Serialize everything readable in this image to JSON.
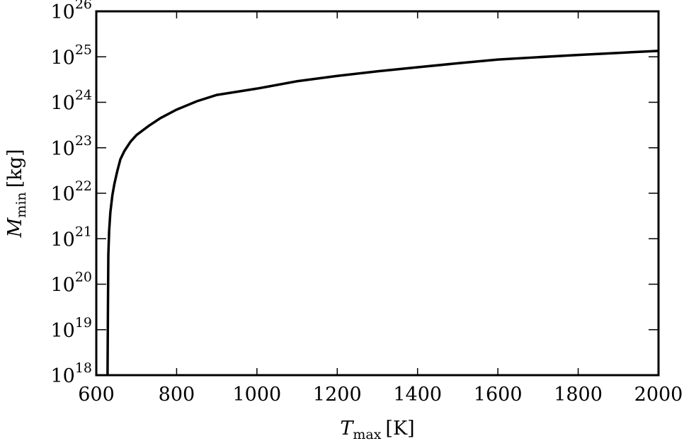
{
  "chart_data": {
    "type": "line",
    "xlabel": {
      "symbol": "T",
      "subscript": "max",
      "unit": "[K]"
    },
    "ylabel": {
      "symbol": "M",
      "subscript": "min",
      "unit": "[kg]"
    },
    "x": [
      628,
      629,
      630,
      632,
      635,
      640,
      645,
      652,
      660,
      670,
      685,
      700,
      730,
      760,
      800,
      850,
      900,
      1000,
      1100,
      1200,
      1300,
      1400,
      1500,
      1600,
      1700,
      1800,
      1900,
      2000
    ],
    "values": [
      1e+18,
      3e+19,
      4.5e+20,
      1.5e+21,
      3.8e+21,
      9e+21,
      1.6e+22,
      3e+22,
      5.6e+22,
      8.5e+22,
      1.35e+23,
      1.9e+23,
      3e+23,
      4.5e+23,
      6.9e+23,
      1.05e+24,
      1.45e+24,
      2e+24,
      2.9e+24,
      3.8e+24,
      4.8e+24,
      5.9e+24,
      7.2e+24,
      8.7e+24,
      9.8e+24,
      1.1e+25,
      1.22e+25,
      1.35e+25
    ],
    "color": "#000000",
    "log_y": true,
    "xlim": [
      600,
      2000
    ],
    "xticks": [
      600,
      800,
      1000,
      1200,
      1400,
      1600,
      1800,
      2000
    ],
    "ylim": [
      1e+18,
      1e+26
    ],
    "yticks": [
      {
        "value": 1e+18,
        "label": "10^18"
      },
      {
        "value": 1e+19,
        "label": "10^19"
      },
      {
        "value": 1e+20,
        "label": "10^20"
      },
      {
        "value": 1e+21,
        "label": "10^21"
      },
      {
        "value": 1e+22,
        "label": "10^22"
      },
      {
        "value": 1e+23,
        "label": "10^23"
      },
      {
        "value": 1e+24,
        "label": "10^24"
      },
      {
        "value": 1e+25,
        "label": "10^25"
      },
      {
        "value": 1e+26,
        "label": "10^26"
      }
    ],
    "grid": false
  }
}
